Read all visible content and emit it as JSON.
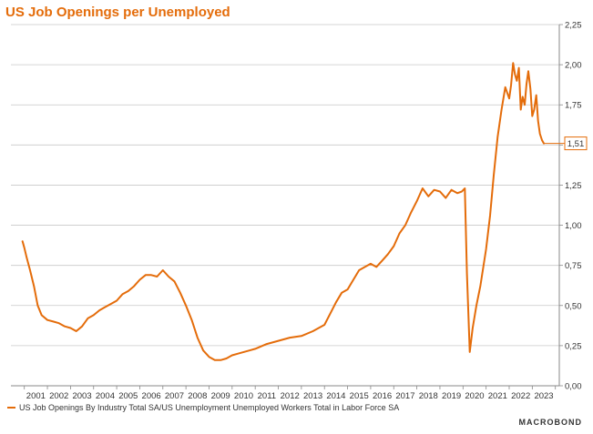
{
  "chart_data": {
    "type": "line",
    "title": "US Job Openings per Unemployed",
    "xlabel": "",
    "ylabel": "",
    "ylim": [
      0,
      2.25
    ],
    "xlim": [
      2000.42,
      2024.17
    ],
    "y_ticks": [
      "0,00",
      "0,25",
      "0,50",
      "0,75",
      "1,00",
      "1,25",
      "1,50",
      "1,75",
      "2,00",
      "2,25"
    ],
    "x_ticks": [
      "2001",
      "2002",
      "2003",
      "2004",
      "2005",
      "2006",
      "2007",
      "2008",
      "2009",
      "2010",
      "2011",
      "2012",
      "2013",
      "2014",
      "2015",
      "2016",
      "2017",
      "2018",
      "2019",
      "2020",
      "2021",
      "2022",
      "2023"
    ],
    "y_axis_position": "right",
    "grid": true,
    "legend_position": "bottom-left",
    "last_value_label": "1,51",
    "series": [
      {
        "name": "US Job Openings By Industry Total SA/US Unemployment Unemployed Workers Total in Labor Force SA",
        "color": "#e46c0a",
        "x": [
          2000.92,
          2001.0,
          2001.1,
          2001.25,
          2001.42,
          2001.58,
          2001.75,
          2002.0,
          2002.25,
          2002.5,
          2002.75,
          2003.0,
          2003.25,
          2003.5,
          2003.75,
          2004.0,
          2004.25,
          2004.5,
          2004.75,
          2005.0,
          2005.25,
          2005.5,
          2005.75,
          2006.0,
          2006.25,
          2006.5,
          2006.75,
          2007.0,
          2007.25,
          2007.5,
          2007.75,
          2008.0,
          2008.25,
          2008.5,
          2008.75,
          2009.0,
          2009.25,
          2009.5,
          2009.75,
          2010.0,
          2010.25,
          2010.5,
          2010.75,
          2011.0,
          2011.5,
          2012.0,
          2012.5,
          2013.0,
          2013.5,
          2014.0,
          2014.25,
          2014.5,
          2014.75,
          2015.0,
          2015.25,
          2015.5,
          2015.75,
          2016.0,
          2016.25,
          2016.5,
          2016.75,
          2017.0,
          2017.25,
          2017.5,
          2017.75,
          2018.0,
          2018.25,
          2018.5,
          2018.75,
          2019.0,
          2019.25,
          2019.5,
          2019.75,
          2019.95,
          2020.08,
          2020.17,
          2020.29,
          2020.42,
          2020.58,
          2020.75,
          2021.0,
          2021.17,
          2021.33,
          2021.5,
          2021.67,
          2021.83,
          2022.0,
          2022.08,
          2022.17,
          2022.25,
          2022.33,
          2022.42,
          2022.5,
          2022.58,
          2022.67,
          2022.75,
          2022.83,
          2022.92,
          2023.0,
          2023.08,
          2023.17,
          2023.25,
          2023.33,
          2023.42,
          2023.5
        ],
        "values": [
          0.9,
          0.86,
          0.8,
          0.72,
          0.62,
          0.5,
          0.44,
          0.41,
          0.4,
          0.39,
          0.37,
          0.36,
          0.34,
          0.37,
          0.42,
          0.44,
          0.47,
          0.49,
          0.51,
          0.53,
          0.57,
          0.59,
          0.62,
          0.66,
          0.69,
          0.69,
          0.68,
          0.72,
          0.68,
          0.65,
          0.58,
          0.5,
          0.41,
          0.3,
          0.22,
          0.18,
          0.16,
          0.16,
          0.17,
          0.19,
          0.2,
          0.21,
          0.22,
          0.23,
          0.26,
          0.28,
          0.3,
          0.31,
          0.34,
          0.38,
          0.45,
          0.52,
          0.58,
          0.6,
          0.66,
          0.72,
          0.74,
          0.76,
          0.74,
          0.78,
          0.82,
          0.87,
          0.95,
          1.0,
          1.08,
          1.15,
          1.23,
          1.18,
          1.22,
          1.21,
          1.17,
          1.22,
          1.2,
          1.21,
          1.23,
          0.7,
          0.21,
          0.36,
          0.5,
          0.62,
          0.85,
          1.06,
          1.31,
          1.55,
          1.72,
          1.86,
          1.79,
          1.87,
          2.01,
          1.94,
          1.9,
          1.98,
          1.72,
          1.8,
          1.75,
          1.88,
          1.96,
          1.85,
          1.68,
          1.72,
          1.81,
          1.65,
          1.57,
          1.53,
          1.51
        ]
      }
    ]
  },
  "legend": {
    "label": "US Job Openings By Industry Total SA/US Unemployment Unemployed Workers Total in Labor Force SA"
  },
  "brand": "MACROBOND"
}
